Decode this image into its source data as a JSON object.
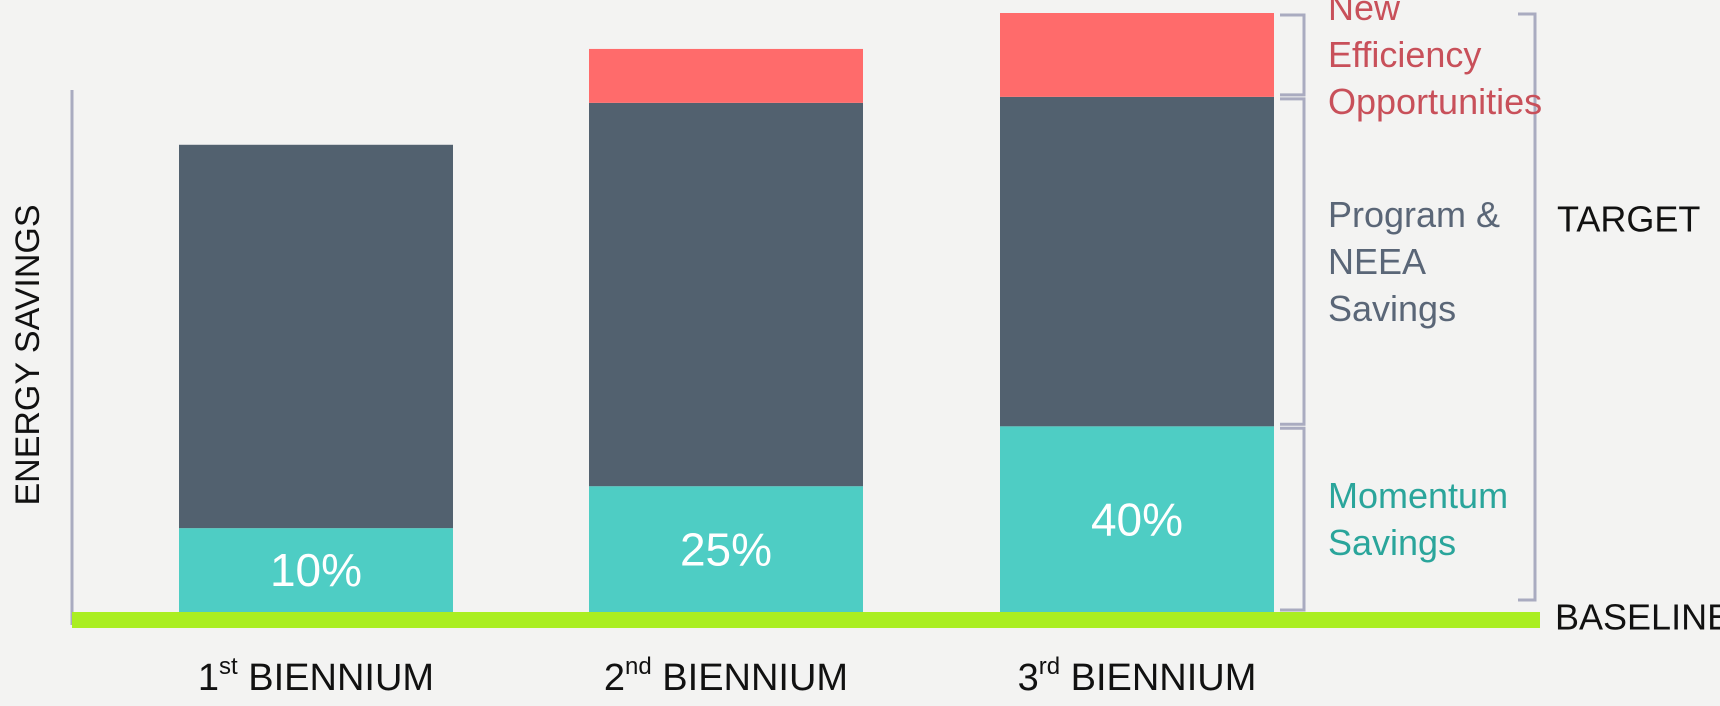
{
  "chart_data": {
    "type": "stacked_bar",
    "y_label": "ENERGY SAVINGS",
    "categories": [
      "1st BIENNIUM",
      "2nd BIENNIUM",
      "3rd BIENNIUM"
    ],
    "ylim": [
      0,
      100
    ],
    "series": [
      {
        "name": "Momentum Savings",
        "color": "#4ecdc4",
        "label_color": "#2aa59b",
        "values": [
          14,
          21,
          31
        ]
      },
      {
        "name": "Program & NEEA Savings",
        "color": "#52616f",
        "label_color": "#5a6677",
        "values": [
          64,
          64,
          55
        ]
      },
      {
        "name": "New Efficiency Opportunities",
        "color": "#ff6b6b",
        "label_color": "#c8505a",
        "values": [
          null,
          9,
          14
        ]
      }
    ],
    "annotations": [
      "10%",
      "25%",
      "40%"
    ],
    "target_label": "TARGET",
    "baseline_label": "BASELINE",
    "baseline_color": "#aaee22",
    "bracket_color": "#a9abc0"
  }
}
